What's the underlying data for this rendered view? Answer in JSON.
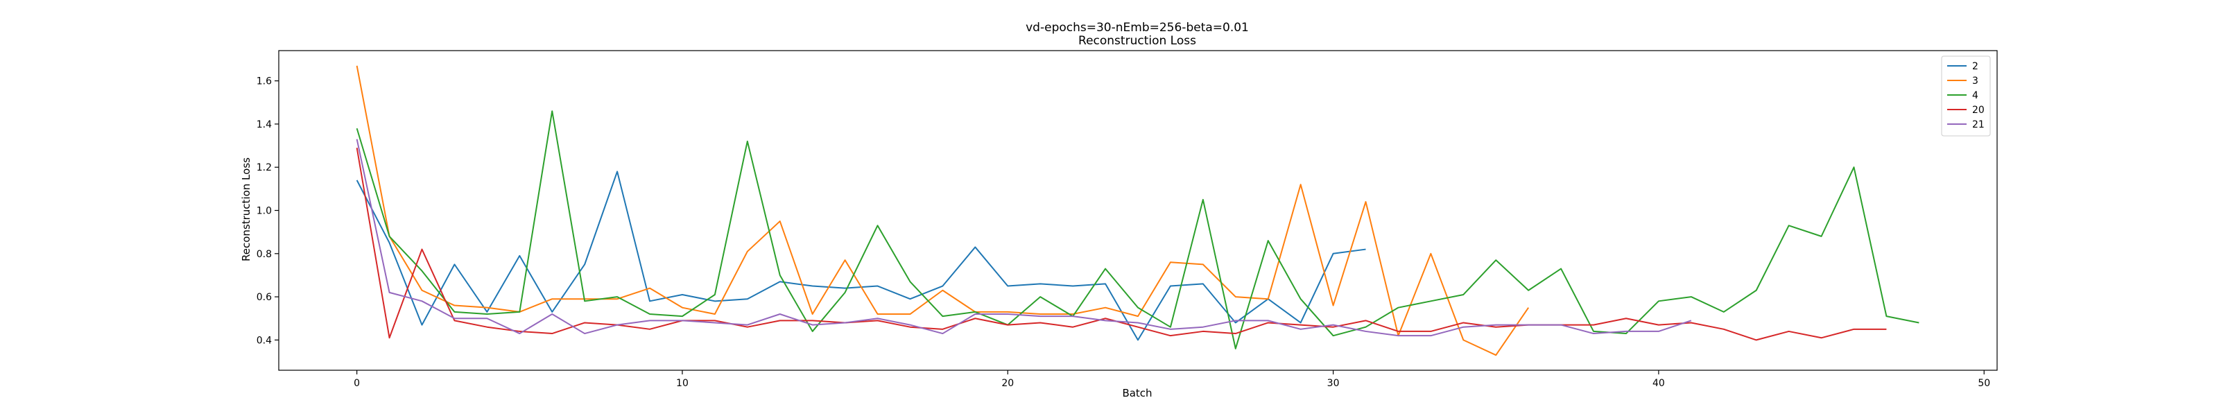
{
  "chart_data": {
    "type": "line",
    "title": "vd-epochs=30-nEmb=256-beta=0.01",
    "subtitle": "Reconstruction Loss",
    "xlabel": "Batch",
    "ylabel": "Reconstruction Loss",
    "xlim": [
      -2.4,
      50.4
    ],
    "ylim": [
      0.26,
      1.74
    ],
    "xticks": [
      0,
      10,
      20,
      30,
      40,
      50
    ],
    "yticks": [
      0.4,
      0.6,
      0.8,
      1.0,
      1.2,
      1.4,
      1.6
    ],
    "xtick_labels": [
      "0",
      "10",
      "20",
      "30",
      "40",
      "50"
    ],
    "ytick_labels": [
      "0.4",
      "0.6",
      "0.8",
      "1.0",
      "1.2",
      "1.4",
      "1.6"
    ],
    "grid": false,
    "legend_position": "top-right",
    "series": [
      {
        "name": "2",
        "color": "#1f77b4",
        "values": [
          1.14,
          0.85,
          0.47,
          0.75,
          0.53,
          0.79,
          0.53,
          0.75,
          1.18,
          0.58,
          0.61,
          0.58,
          0.59,
          0.67,
          0.65,
          0.64,
          0.65,
          0.59,
          0.65,
          0.83,
          0.65,
          0.66,
          0.65,
          0.66,
          0.4,
          0.65,
          0.66,
          0.48,
          0.59,
          0.48,
          0.8,
          0.82
        ]
      },
      {
        "name": "3",
        "color": "#ff7f0e",
        "values": [
          1.67,
          0.88,
          0.63,
          0.56,
          0.55,
          0.53,
          0.59,
          0.59,
          0.59,
          0.64,
          0.55,
          0.52,
          0.81,
          0.95,
          0.52,
          0.77,
          0.52,
          0.52,
          0.63,
          0.53,
          0.53,
          0.52,
          0.52,
          0.55,
          0.51,
          0.76,
          0.75,
          0.6,
          0.59,
          1.12,
          0.56,
          1.04,
          0.42,
          0.8,
          0.4,
          0.33,
          0.55
        ]
      },
      {
        "name": "4",
        "color": "#2ca02c",
        "values": [
          1.38,
          0.88,
          0.72,
          0.53,
          0.52,
          0.53,
          1.46,
          0.58,
          0.6,
          0.52,
          0.51,
          0.61,
          1.32,
          0.7,
          0.44,
          0.62,
          0.93,
          0.67,
          0.51,
          0.53,
          0.47,
          0.6,
          0.51,
          0.73,
          0.55,
          0.46,
          1.05,
          0.36,
          0.86,
          0.59,
          0.42,
          0.46,
          0.55,
          0.58,
          0.61,
          0.77,
          0.63,
          0.73,
          0.44,
          0.43,
          0.58,
          0.6,
          0.53,
          0.63,
          0.93,
          0.88,
          1.2,
          0.51,
          0.48
        ]
      },
      {
        "name": "20",
        "color": "#d62728",
        "values": [
          1.29,
          0.41,
          0.82,
          0.49,
          0.46,
          0.44,
          0.43,
          0.48,
          0.47,
          0.45,
          0.49,
          0.49,
          0.46,
          0.49,
          0.49,
          0.48,
          0.49,
          0.46,
          0.45,
          0.5,
          0.47,
          0.48,
          0.46,
          0.5,
          0.46,
          0.42,
          0.44,
          0.43,
          0.48,
          0.47,
          0.46,
          0.49,
          0.44,
          0.44,
          0.48,
          0.46,
          0.47,
          0.47,
          0.47,
          0.5,
          0.47,
          0.48,
          0.45,
          0.4,
          0.44,
          0.41,
          0.45,
          0.45
        ]
      },
      {
        "name": "21",
        "color": "#9467bd",
        "values": [
          1.33,
          0.62,
          0.58,
          0.5,
          0.5,
          0.43,
          0.52,
          0.43,
          0.47,
          0.49,
          0.49,
          0.48,
          0.47,
          0.52,
          0.47,
          0.48,
          0.5,
          0.47,
          0.43,
          0.52,
          0.52,
          0.51,
          0.51,
          0.49,
          0.48,
          0.45,
          0.46,
          0.49,
          0.49,
          0.45,
          0.47,
          0.44,
          0.42,
          0.42,
          0.46,
          0.47,
          0.47,
          0.47,
          0.43,
          0.44,
          0.44,
          0.49
        ]
      }
    ]
  }
}
